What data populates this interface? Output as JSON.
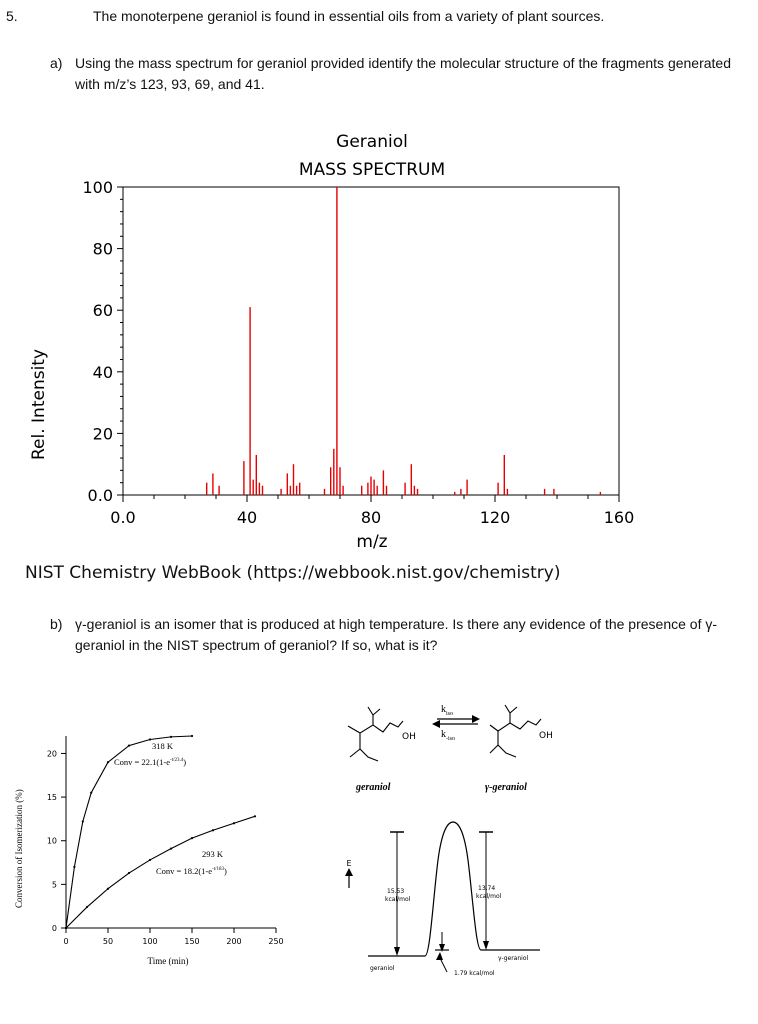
{
  "question": {
    "number": "5.",
    "title": "The monoterpene geraniol is found in essential oils from a variety of plant sources."
  },
  "part_a": {
    "label": "a)",
    "text": "Using the mass spectrum for geraniol provided identify the molecular structure of the fragments generated with m/z’s 123, 93, 69, and 41."
  },
  "part_b": {
    "label": "b)",
    "text": "γ-geraniol is an isomer that is produced at high temperature. Is there any evidence of the presence of γ-geraniol in the NIST spectrum of geraniol? If so, what is it?"
  },
  "source_caption": "NIST Chemistry WebBook (https://webbook.nist.gov/chemistry)",
  "colors": {
    "spectrum_line": "#e60000",
    "axis": "#000000"
  },
  "chart_data": [
    {
      "type": "bar",
      "title": "Geraniol",
      "subtitle": "MASS SPECTRUM",
      "xlabel": "m/z",
      "ylabel": "Rel. Intensity",
      "xlim": [
        0,
        160
      ],
      "ylim": [
        0,
        100
      ],
      "xticks": [
        "0.0",
        "40",
        "80",
        "120",
        "160"
      ],
      "yticks": [
        "0.0",
        "20",
        "40",
        "60",
        "80",
        "100"
      ],
      "peaks": [
        {
          "mz": 27,
          "intensity": 4
        },
        {
          "mz": 29,
          "intensity": 7
        },
        {
          "mz": 31,
          "intensity": 3
        },
        {
          "mz": 39,
          "intensity": 11
        },
        {
          "mz": 41,
          "intensity": 61
        },
        {
          "mz": 42,
          "intensity": 5
        },
        {
          "mz": 43,
          "intensity": 13
        },
        {
          "mz": 44,
          "intensity": 4
        },
        {
          "mz": 45,
          "intensity": 3
        },
        {
          "mz": 51,
          "intensity": 2
        },
        {
          "mz": 53,
          "intensity": 7
        },
        {
          "mz": 54,
          "intensity": 3
        },
        {
          "mz": 55,
          "intensity": 10
        },
        {
          "mz": 56,
          "intensity": 3
        },
        {
          "mz": 57,
          "intensity": 4
        },
        {
          "mz": 65,
          "intensity": 2
        },
        {
          "mz": 67,
          "intensity": 9
        },
        {
          "mz": 68,
          "intensity": 15
        },
        {
          "mz": 69,
          "intensity": 100
        },
        {
          "mz": 70,
          "intensity": 9
        },
        {
          "mz": 71,
          "intensity": 3
        },
        {
          "mz": 77,
          "intensity": 3
        },
        {
          "mz": 79,
          "intensity": 4
        },
        {
          "mz": 80,
          "intensity": 6
        },
        {
          "mz": 81,
          "intensity": 5
        },
        {
          "mz": 82,
          "intensity": 3
        },
        {
          "mz": 84,
          "intensity": 8
        },
        {
          "mz": 85,
          "intensity": 3
        },
        {
          "mz": 91,
          "intensity": 4
        },
        {
          "mz": 93,
          "intensity": 10
        },
        {
          "mz": 94,
          "intensity": 3
        },
        {
          "mz": 95,
          "intensity": 2
        },
        {
          "mz": 107,
          "intensity": 1
        },
        {
          "mz": 109,
          "intensity": 2
        },
        {
          "mz": 111,
          "intensity": 5
        },
        {
          "mz": 121,
          "intensity": 4
        },
        {
          "mz": 123,
          "intensity": 13
        },
        {
          "mz": 124,
          "intensity": 2
        },
        {
          "mz": 136,
          "intensity": 2
        },
        {
          "mz": 139,
          "intensity": 2
        },
        {
          "mz": 154,
          "intensity": 1
        }
      ]
    },
    {
      "type": "line",
      "xlabel": "Time (min)",
      "ylabel": "Conversion of Isomerization (%)",
      "xlim": [
        0,
        250
      ],
      "ylim": [
        0,
        22
      ],
      "xticks": [
        "0",
        "50",
        "100",
        "150",
        "200",
        "250"
      ],
      "yticks": [
        "0",
        "5",
        "10",
        "15",
        "20"
      ],
      "series": [
        {
          "name": "318 K",
          "equation": "Conv = 22.1(1-e",
          "exponent": "-t/23.4",
          "close": ")",
          "x": [
            0,
            10,
            20,
            30,
            50,
            75,
            100,
            125,
            150
          ],
          "y": [
            0,
            7.0,
            12.2,
            15.5,
            19.0,
            20.9,
            21.6,
            21.9,
            22.0
          ]
        },
        {
          "name": "293 K",
          "equation": "Conv = 18.2(1-e",
          "exponent": "-t/183",
          "close": ")",
          "x": [
            0,
            25,
            50,
            75,
            100,
            125,
            150,
            175,
            200,
            225
          ],
          "y": [
            0,
            2.4,
            4.5,
            6.3,
            7.8,
            9.1,
            10.3,
            11.2,
            12.0,
            12.8
          ]
        }
      ]
    }
  ],
  "scheme": {
    "oh_left": "OH",
    "oh_right": "OH",
    "k_forward": "k",
    "k_forward_sub": "iso",
    "k_reverse": "k",
    "k_reverse_sub": "-iso",
    "geraniol_label": "geraniol",
    "gamma_label": "γ-geraniol"
  },
  "energy_diagram": {
    "axis_label": "E",
    "barrier_left": "15.53",
    "barrier_right": "13.74",
    "unit": "kcal/mol",
    "bottom_left": "geraniol",
    "bottom_right": "γ-geraniol",
    "delta": "1.79 kcal/mol"
  }
}
